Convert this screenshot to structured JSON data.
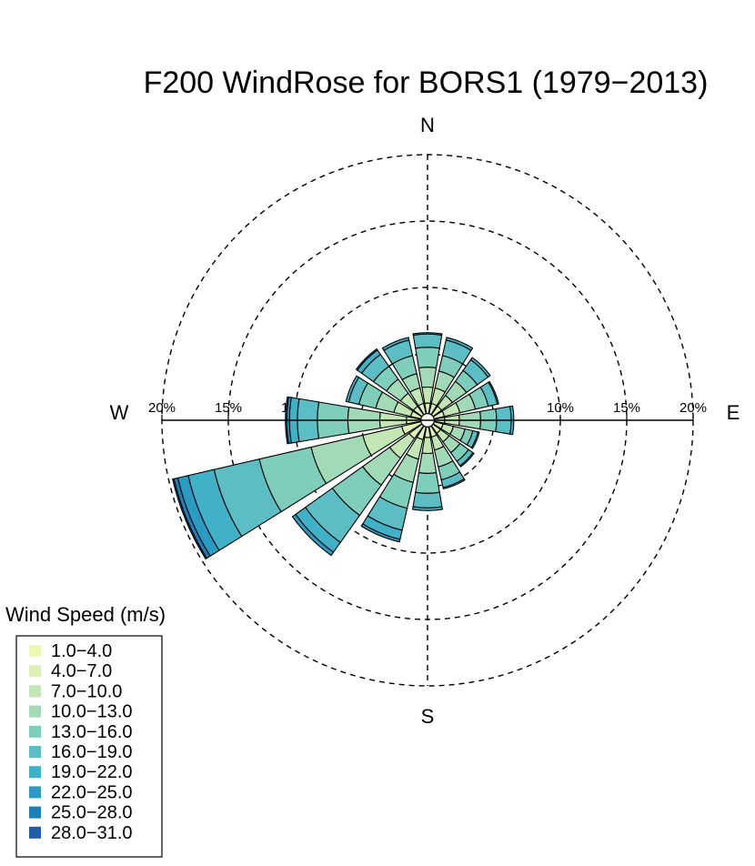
{
  "chart_data": {
    "type": "windrose",
    "title": "F200 WindRose for BORS1 (1979−2013)",
    "directions": [
      "N",
      "NNE",
      "NE",
      "ENE",
      "E",
      "ESE",
      "SE",
      "SSE",
      "S",
      "SSW",
      "SW",
      "WSW",
      "W",
      "WNW",
      "NW",
      "NNW"
    ],
    "compass": {
      "north": "N",
      "east": "E",
      "south": "S",
      "west": "W"
    },
    "radial_ticks": [
      {
        "value": 5,
        "label": ""
      },
      {
        "value": 10,
        "label": "10%"
      },
      {
        "value": 15,
        "label": "15%"
      },
      {
        "value": 20,
        "label": "20%"
      }
    ],
    "west_tick_labels": [
      "20%",
      "15%",
      "10%"
    ],
    "legend": {
      "title": "Wind Speed (m/s)",
      "placement": "bottom-left"
    },
    "bins": [
      {
        "label": "1.0−4.0",
        "color": "#edf8b1"
      },
      {
        "label": "4.0−7.0",
        "color": "#daf0b4"
      },
      {
        "label": "7.0−10.0",
        "color": "#c2e6b4"
      },
      {
        "label": "10.0−13.0",
        "color": "#a2dab8"
      },
      {
        "label": "13.0−16.0",
        "color": "#7fcdbb"
      },
      {
        "label": "16.0−19.0",
        "color": "#5cbec4"
      },
      {
        "label": "19.0−22.0",
        "color": "#41b1c8"
      },
      {
        "label": "22.0−25.0",
        "color": "#2c9bc4"
      },
      {
        "label": "25.0−28.0",
        "color": "#1f80b8"
      },
      {
        "label": "28.0−31.0",
        "color": "#225ea8"
      }
    ],
    "series": [
      {
        "direction": "N",
        "cumulative": [
          0.5,
          1.3,
          2.5,
          4.0,
          5.5,
          6.5,
          6.6
        ]
      },
      {
        "direction": "NNE",
        "cumulative": [
          0.5,
          1.3,
          2.5,
          3.8,
          5.0,
          6.2,
          6.4
        ]
      },
      {
        "direction": "NE",
        "cumulative": [
          0.5,
          1.3,
          2.3,
          3.6,
          4.6,
          5.6,
          5.8
        ]
      },
      {
        "direction": "ENE",
        "cumulative": [
          0.5,
          1.3,
          2.5,
          3.7,
          4.7,
          5.4,
          5.5
        ]
      },
      {
        "direction": "E",
        "cumulative": [
          0.5,
          1.3,
          2.4,
          4.0,
          5.2,
          6.3,
          6.5
        ]
      },
      {
        "direction": "ESE",
        "cumulative": [
          0.5,
          1.2,
          2.0,
          2.9,
          3.5,
          3.9,
          4.0
        ]
      },
      {
        "direction": "SE",
        "cumulative": [
          0.5,
          1.2,
          2.0,
          3.0,
          3.8,
          4.2,
          4.3
        ]
      },
      {
        "direction": "SSE",
        "cumulative": [
          0.5,
          1.3,
          2.3,
          3.6,
          4.6,
          5.2,
          5.3
        ]
      },
      {
        "direction": "S",
        "cumulative": [
          0.5,
          1.3,
          2.5,
          4.0,
          5.5,
          6.6,
          6.8
        ]
      },
      {
        "direction": "SSW",
        "cumulative": [
          0.5,
          1.5,
          3.0,
          4.8,
          6.8,
          8.5,
          9.2,
          9.4
        ]
      },
      {
        "direction": "SW",
        "cumulative": [
          0.5,
          1.7,
          3.5,
          6.0,
          8.8,
          11.3,
          12.2,
          12.5
        ]
      },
      {
        "direction": "WSW",
        "cumulative": [
          0.5,
          2.0,
          5.0,
          9.0,
          13.0,
          16.5,
          18.5,
          19.3,
          19.6,
          19.7
        ]
      },
      {
        "direction": "W",
        "cumulative": [
          0.5,
          1.6,
          3.6,
          6.0,
          8.3,
          9.8,
          10.4,
          10.6,
          10.7
        ]
      },
      {
        "direction": "WNW",
        "cumulative": [
          0.5,
          1.3,
          2.6,
          4.0,
          5.3,
          6.1,
          6.3
        ]
      },
      {
        "direction": "NW",
        "cumulative": [
          0.5,
          1.3,
          2.5,
          3.8,
          5.0,
          6.1,
          6.5,
          6.6
        ]
      },
      {
        "direction": "NNW",
        "cumulative": [
          0.5,
          1.3,
          2.5,
          3.6,
          5.0,
          6.2,
          6.4
        ]
      }
    ]
  }
}
